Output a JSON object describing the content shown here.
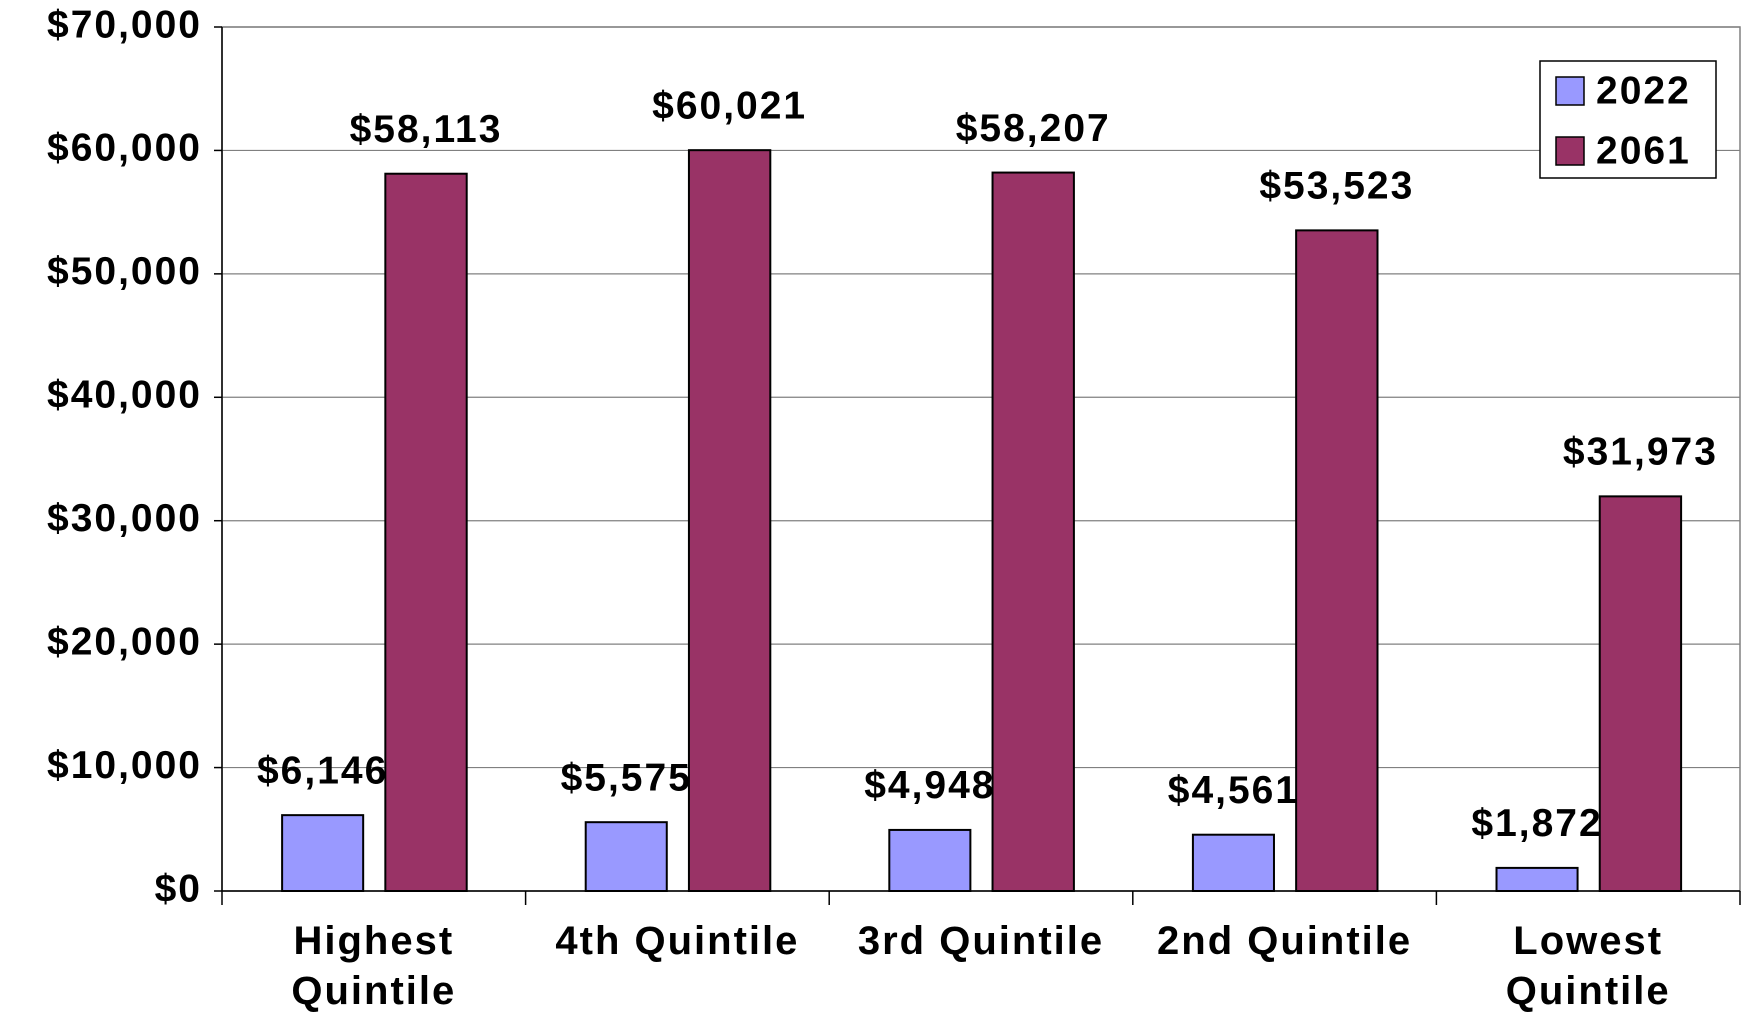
{
  "chart_data": {
    "type": "bar",
    "categories": [
      "Highest Quintile",
      "4th Quintile",
      "3rd Quintile",
      "2nd Quintile",
      "Lowest Quintile"
    ],
    "series": [
      {
        "name": "2022",
        "color": "#9999ff",
        "values": [
          6146,
          5575,
          4948,
          4561,
          1872
        ],
        "value_labels": [
          "$6,146",
          "$5,575",
          "$4,948",
          "$4,561",
          "$1,872"
        ]
      },
      {
        "name": "2061",
        "color": "#993366",
        "values": [
          58113,
          60021,
          58207,
          53523,
          31973
        ],
        "value_labels": [
          "$58,113",
          "$60,021",
          "$58,207",
          "$53,523",
          "$31,973"
        ]
      }
    ],
    "ylim": [
      0,
      70000
    ],
    "yticks": [
      {
        "value": 0,
        "label": "$0"
      },
      {
        "value": 10000,
        "label": "$10,000"
      },
      {
        "value": 20000,
        "label": "$20,000"
      },
      {
        "value": 30000,
        "label": "$30,000"
      },
      {
        "value": 40000,
        "label": "$40,000"
      },
      {
        "value": 50000,
        "label": "$50,000"
      },
      {
        "value": 60000,
        "label": "$60,000"
      },
      {
        "value": 70000,
        "label": "$70,000"
      }
    ],
    "grid": true,
    "legend": "upper right"
  }
}
